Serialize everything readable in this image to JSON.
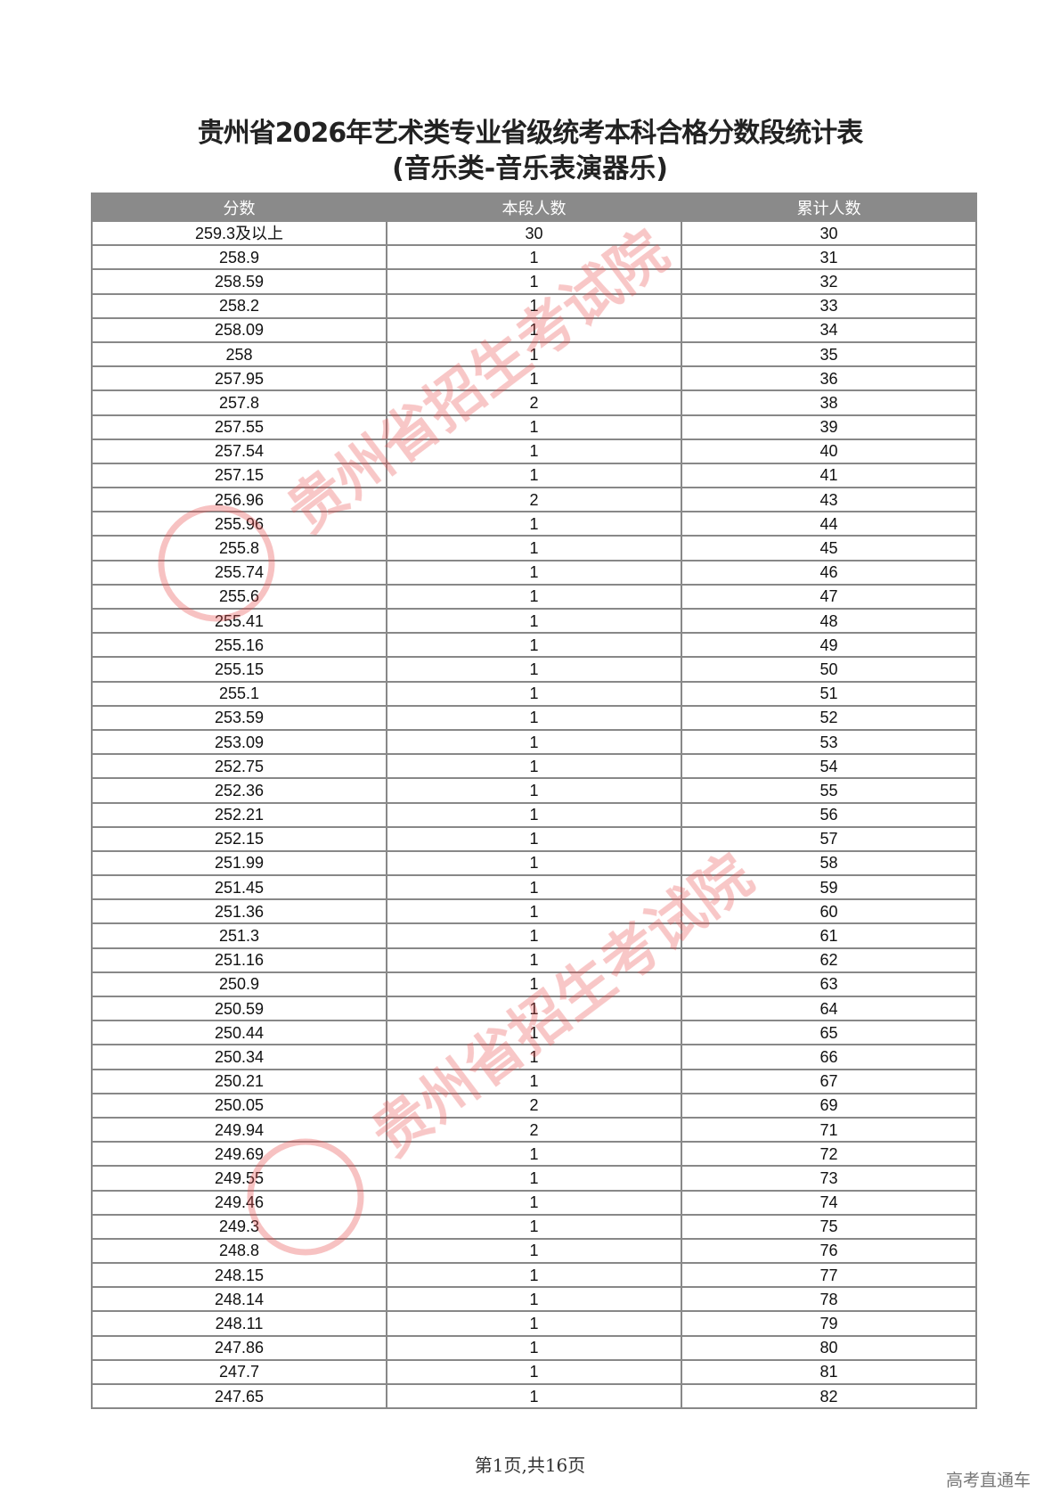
{
  "title": {
    "line1": "贵州省2026年艺术类专业省级统考本科合格分数段统计表",
    "line2": "(音乐类-音乐表演器乐)"
  },
  "table": {
    "headers": [
      "分数",
      "本段人数",
      "累计人数"
    ],
    "rows": [
      [
        "259.3及以上",
        "30",
        "30"
      ],
      [
        "258.9",
        "1",
        "31"
      ],
      [
        "258.59",
        "1",
        "32"
      ],
      [
        "258.2",
        "1",
        "33"
      ],
      [
        "258.09",
        "1",
        "34"
      ],
      [
        "258",
        "1",
        "35"
      ],
      [
        "257.95",
        "1",
        "36"
      ],
      [
        "257.8",
        "2",
        "38"
      ],
      [
        "257.55",
        "1",
        "39"
      ],
      [
        "257.54",
        "1",
        "40"
      ],
      [
        "257.15",
        "1",
        "41"
      ],
      [
        "256.96",
        "2",
        "43"
      ],
      [
        "255.96",
        "1",
        "44"
      ],
      [
        "255.8",
        "1",
        "45"
      ],
      [
        "255.74",
        "1",
        "46"
      ],
      [
        "255.6",
        "1",
        "47"
      ],
      [
        "255.41",
        "1",
        "48"
      ],
      [
        "255.16",
        "1",
        "49"
      ],
      [
        "255.15",
        "1",
        "50"
      ],
      [
        "255.1",
        "1",
        "51"
      ],
      [
        "253.59",
        "1",
        "52"
      ],
      [
        "253.09",
        "1",
        "53"
      ],
      [
        "252.75",
        "1",
        "54"
      ],
      [
        "252.36",
        "1",
        "55"
      ],
      [
        "252.21",
        "1",
        "56"
      ],
      [
        "252.15",
        "1",
        "57"
      ],
      [
        "251.99",
        "1",
        "58"
      ],
      [
        "251.45",
        "1",
        "59"
      ],
      [
        "251.36",
        "1",
        "60"
      ],
      [
        "251.3",
        "1",
        "61"
      ],
      [
        "251.16",
        "1",
        "62"
      ],
      [
        "250.9",
        "1",
        "63"
      ],
      [
        "250.59",
        "1",
        "64"
      ],
      [
        "250.44",
        "1",
        "65"
      ],
      [
        "250.34",
        "1",
        "66"
      ],
      [
        "250.21",
        "1",
        "67"
      ],
      [
        "250.05",
        "2",
        "69"
      ],
      [
        "249.94",
        "2",
        "71"
      ],
      [
        "249.69",
        "1",
        "72"
      ],
      [
        "249.55",
        "1",
        "73"
      ],
      [
        "249.46",
        "1",
        "74"
      ],
      [
        "249.3",
        "1",
        "75"
      ],
      [
        "248.8",
        "1",
        "76"
      ],
      [
        "248.15",
        "1",
        "77"
      ],
      [
        "248.14",
        "1",
        "78"
      ],
      [
        "248.11",
        "1",
        "79"
      ],
      [
        "247.86",
        "1",
        "80"
      ],
      [
        "247.7",
        "1",
        "81"
      ],
      [
        "247.65",
        "1",
        "82"
      ]
    ]
  },
  "footer": {
    "page": "第1页,共16页"
  },
  "brand": "高考直通车",
  "watermark": {
    "text": "贵州省招生考试院",
    "color": "#e8504f"
  }
}
